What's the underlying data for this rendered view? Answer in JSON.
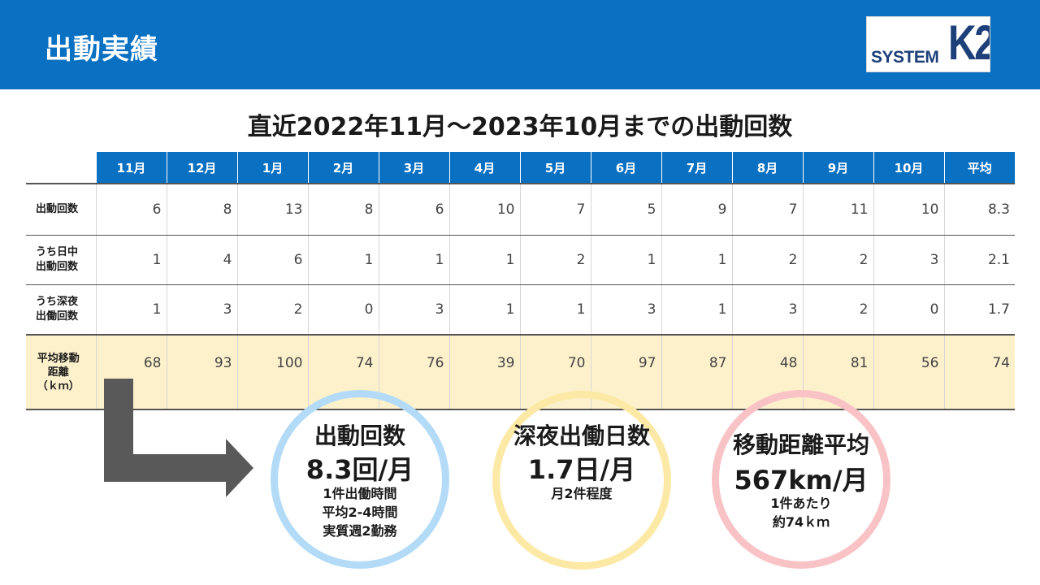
{
  "header": {
    "title": "出動実績"
  },
  "logo": {
    "text": "SYSTEM",
    "mark": "K2"
  },
  "subtitle": "直近2022年11月～2023年10月までの出動回数",
  "table": {
    "columns": [
      "11月",
      "12月",
      "1月",
      "2月",
      "3月",
      "4月",
      "5月",
      "6月",
      "7月",
      "8月",
      "9月",
      "10月",
      "平均"
    ],
    "rows": [
      {
        "label": [
          "出動回数"
        ],
        "values": [
          "6",
          "8",
          "13",
          "8",
          "6",
          "10",
          "7",
          "5",
          "9",
          "7",
          "11",
          "10",
          "8.3"
        ]
      },
      {
        "label": [
          "うち日中",
          "出動回数"
        ],
        "values": [
          "1",
          "4",
          "6",
          "1",
          "1",
          "1",
          "2",
          "1",
          "1",
          "2",
          "2",
          "3",
          "2.1"
        ]
      },
      {
        "label": [
          "うち深夜",
          "出働回数"
        ],
        "values": [
          "1",
          "3",
          "2",
          "0",
          "3",
          "1",
          "1",
          "3",
          "1",
          "3",
          "2",
          "0",
          "1.7"
        ]
      },
      {
        "label": [
          "平均移動",
          "距離",
          "（ｋｍ）"
        ],
        "values": [
          "68",
          "93",
          "100",
          "74",
          "76",
          "39",
          "70",
          "97",
          "87",
          "48",
          "81",
          "56",
          "74"
        ]
      }
    ]
  },
  "circles": [
    {
      "title": "出動回数",
      "value": "8.3回/月",
      "notes": [
        "1件出働時間",
        "平均2-4時間",
        "実質週2勤務"
      ],
      "color": "#b3dbf8"
    },
    {
      "title": "深夜出働日数",
      "value": "1.7日/月",
      "notes": [
        "月2件程度"
      ],
      "color": "#fde9a6"
    },
    {
      "title": "移動距離平均",
      "value": "567km/月",
      "notes": [
        "1件あたり",
        "約74ｋｍ"
      ],
      "color": "#f9c3c6"
    }
  ],
  "colors": {
    "header": "#0a70c2",
    "highlight_row": "#fdf1cc",
    "arrow": "#595959"
  },
  "icons": {
    "arrow": "bent-arrow-right-icon"
  }
}
